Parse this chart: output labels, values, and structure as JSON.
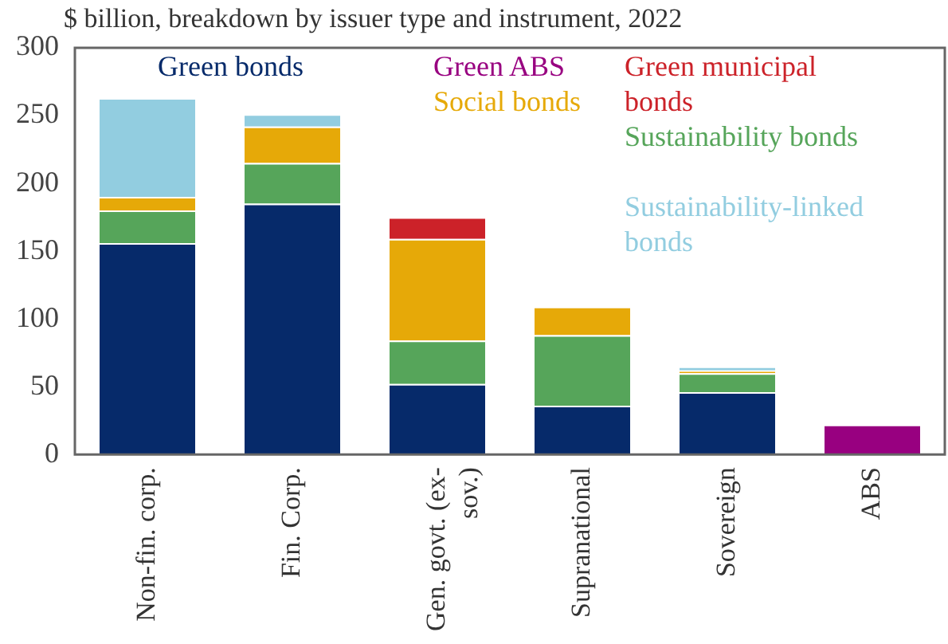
{
  "chart_data": {
    "type": "bar",
    "title": "$ billion, breakdown by issuer type and instrument, 2022",
    "stacked": true,
    "legend": "top",
    "grid": false,
    "categories": [
      "Non-fin. corp.",
      "Fin. Corp.",
      "Gen. govt. (ex-sov.)",
      "Supranational",
      "Sovereign",
      "ABS"
    ],
    "ylim": [
      0,
      300
    ],
    "yticks": [
      0,
      50,
      100,
      150,
      200,
      250,
      300
    ],
    "series": [
      {
        "name": "Green bonds",
        "color": "#062a6a",
        "values": [
          156,
          185,
          52,
          36,
          46,
          null
        ]
      },
      {
        "name": "Sustainability bonds",
        "color": "#56a55a",
        "values": [
          24,
          30,
          32,
          52,
          14,
          null
        ]
      },
      {
        "name": "Social bonds",
        "color": "#e6a908",
        "values": [
          10,
          27,
          75,
          21,
          2,
          null
        ]
      },
      {
        "name": "Green municipal bonds",
        "color": "#cc2229",
        "values": [
          null,
          null,
          16,
          null,
          null,
          null
        ]
      },
      {
        "name": "Sustainability-linked bonds",
        "color": "#92cde0",
        "values": [
          73,
          9,
          null,
          null,
          3,
          null
        ]
      },
      {
        "name": "Green ABS",
        "color": "#980080",
        "values": [
          null,
          null,
          null,
          null,
          null,
          22
        ]
      }
    ]
  }
}
